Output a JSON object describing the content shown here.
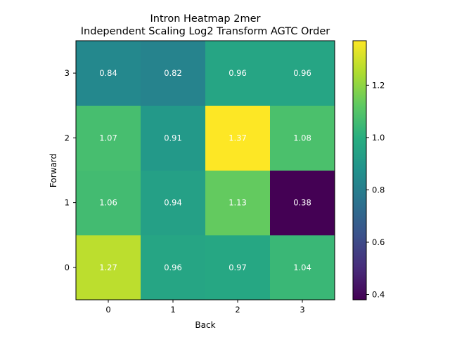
{
  "chart_data": {
    "type": "heatmap",
    "title": "Intron Heatmap 2mer",
    "subtitle": "Independent Scaling Log2 Transform AGTC Order",
    "xlabel": "Back",
    "ylabel": "Forward",
    "x_categories": [
      "0",
      "1",
      "2",
      "3"
    ],
    "y_categories": [
      "0",
      "1",
      "2",
      "3"
    ],
    "values": [
      [
        1.27,
        0.96,
        0.97,
        1.04
      ],
      [
        1.06,
        0.94,
        1.13,
        0.38
      ],
      [
        1.07,
        0.91,
        1.37,
        1.08
      ],
      [
        0.84,
        0.82,
        0.96,
        0.96
      ]
    ],
    "y_origin": "bottom",
    "colormap": "viridis",
    "color_range": [
      0.38,
      1.37
    ],
    "colorbar_ticks": [
      0.4,
      0.6,
      0.8,
      1.0,
      1.2
    ],
    "colorbar_tick_labels": [
      "0.4",
      "0.6",
      "0.8",
      "1.0",
      "1.2"
    ],
    "cell_label_color": "#ffffff",
    "grid": false
  }
}
